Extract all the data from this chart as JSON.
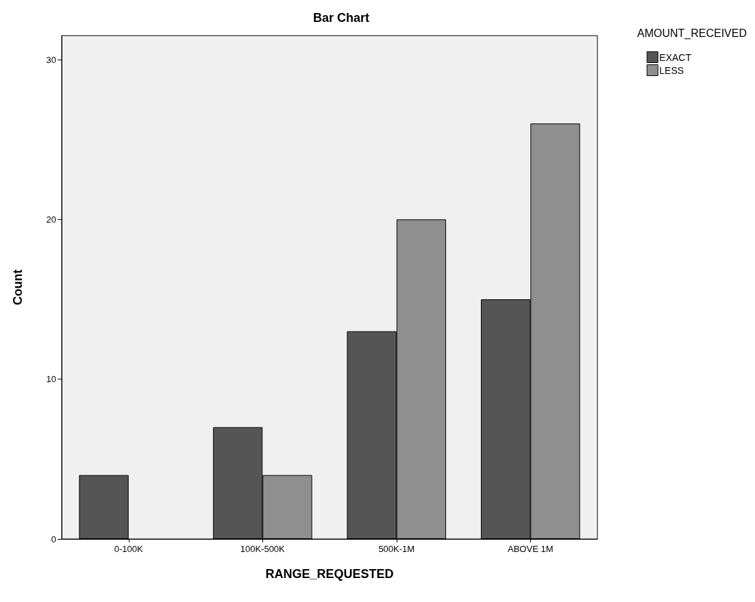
{
  "chart_data": {
    "type": "bar",
    "title": "Bar Chart",
    "xlabel": "RANGE_REQUESTED",
    "ylabel": "Count",
    "legend_title": "AMOUNT_RECEIVED",
    "categories": [
      "0-100K",
      "100K-500K",
      "500K-1M",
      "ABOVE 1M"
    ],
    "series": [
      {
        "name": "EXACT",
        "color": "#555555",
        "values": [
          4,
          7,
          13,
          15
        ]
      },
      {
        "name": "LESS",
        "color": "#8f8f8f",
        "values": [
          null,
          4,
          20,
          26
        ]
      }
    ],
    "ylim": [
      0,
      31.5
    ],
    "yticks": [
      0,
      10,
      20,
      30
    ],
    "grid": false,
    "legend": "top right"
  }
}
